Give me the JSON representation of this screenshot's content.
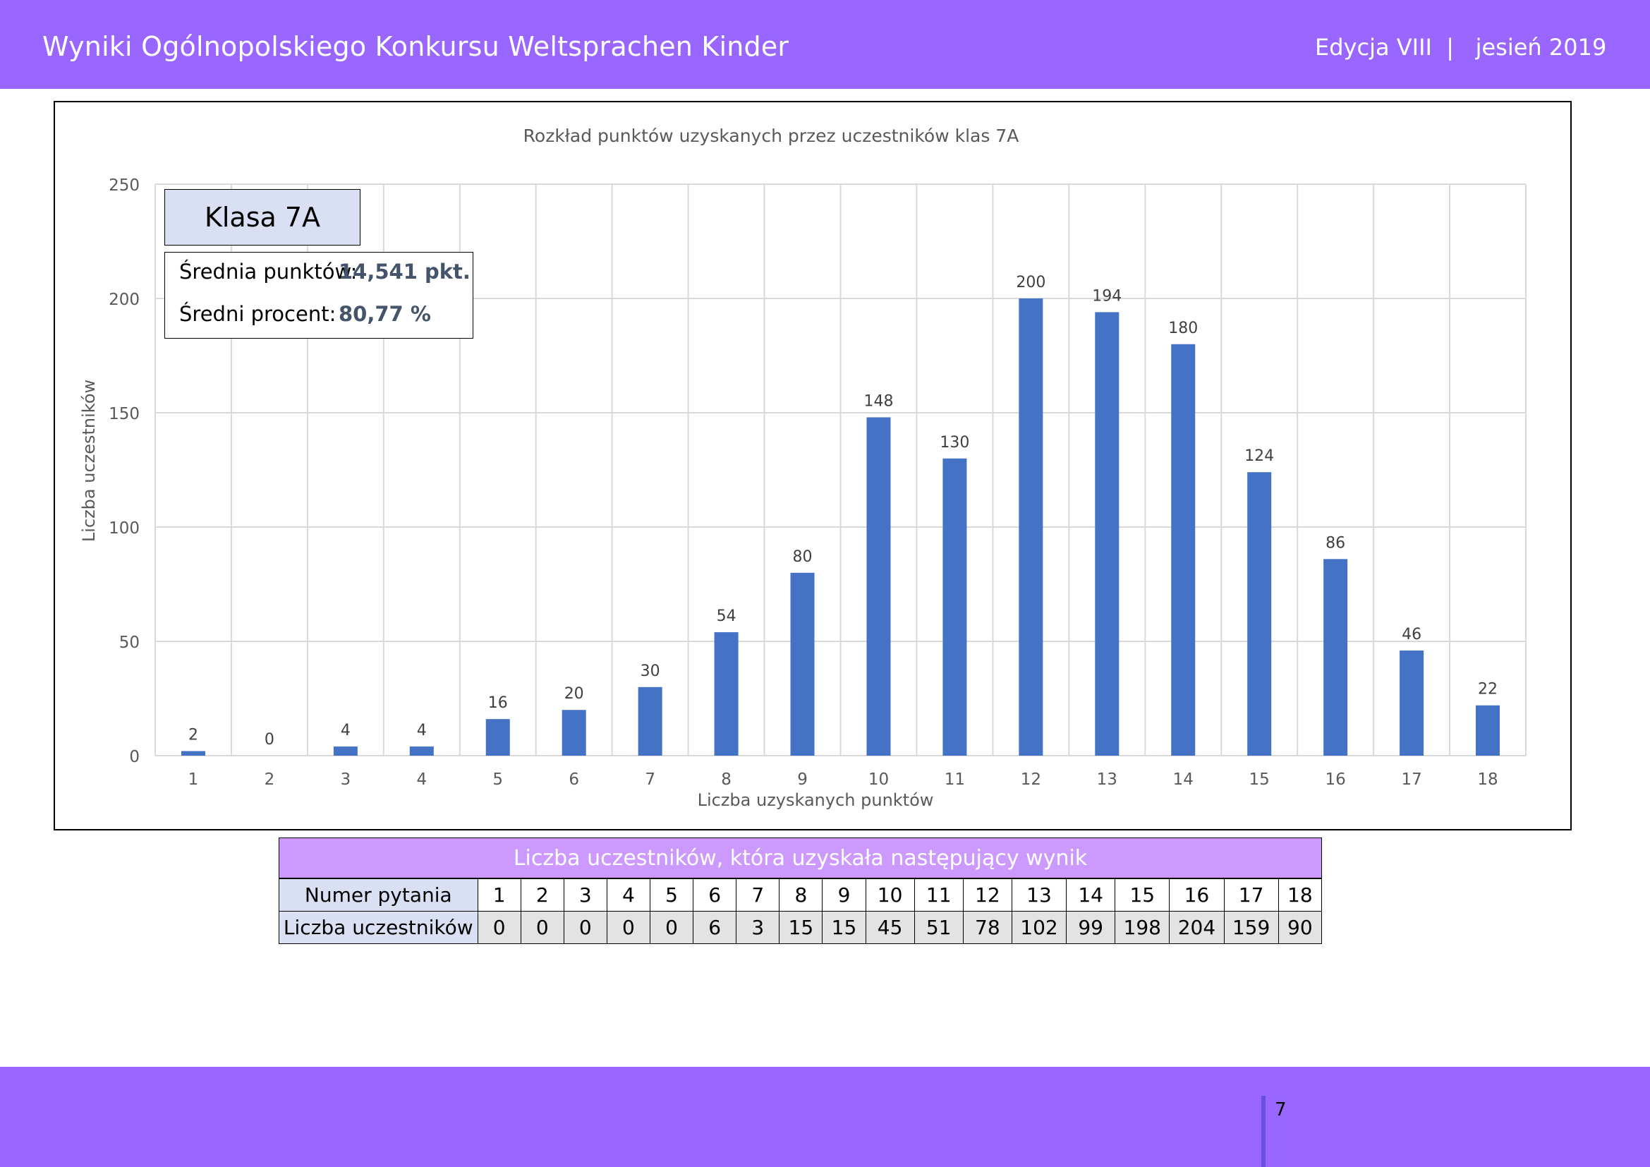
{
  "header": {
    "title": "Wyniki Ogólnopolskiego Konkursu Weltsprachen Kinder",
    "edition": "Edycja VIII  |   jesień 2019"
  },
  "info_box": {
    "class_label": "Klasa 7A",
    "avg_points_label": "Średnia punktów:",
    "avg_points_value": "14,541 pkt.",
    "avg_percent_label": "Średni procent:",
    "avg_percent_value": "80,77 %"
  },
  "chart_data": {
    "type": "bar",
    "title": "Rozkład punktów uzyskanych przez uczestników klas 7A",
    "xlabel": "Liczba uzyskanych punktów",
    "ylabel": "Liczba uczestników",
    "categories": [
      "1",
      "2",
      "3",
      "4",
      "5",
      "6",
      "7",
      "8",
      "9",
      "10",
      "11",
      "12",
      "13",
      "14",
      "15",
      "16",
      "17",
      "18"
    ],
    "values": [
      2,
      0,
      4,
      4,
      16,
      20,
      30,
      54,
      80,
      148,
      130,
      200,
      194,
      180,
      124,
      86,
      46,
      22
    ],
    "ylim": [
      0,
      250
    ],
    "yticks": [
      0,
      50,
      100,
      150,
      200,
      250
    ],
    "grid": true,
    "bar_color": "#4472c4"
  },
  "table": {
    "caption": "Liczba uczestników, która uzyskała następujący wynik",
    "row1_label": "Numer pytania",
    "row2_label": "Liczba uczestników",
    "questions": [
      "1",
      "2",
      "3",
      "4",
      "5",
      "6",
      "7",
      "8",
      "9",
      "10",
      "11",
      "12",
      "13",
      "14",
      "15",
      "16",
      "17",
      "18"
    ],
    "counts": [
      "0",
      "0",
      "0",
      "0",
      "0",
      "6",
      "3",
      "15",
      "15",
      "45",
      "51",
      "78",
      "102",
      "99",
      "198",
      "204",
      "159",
      "90"
    ]
  },
  "footer": {
    "page_number": "7"
  },
  "colors": {
    "header_bg": "#9966ff",
    "caption_bg": "#cc99ff",
    "label_bg": "#dae0f3",
    "value_text": "#44546a"
  }
}
